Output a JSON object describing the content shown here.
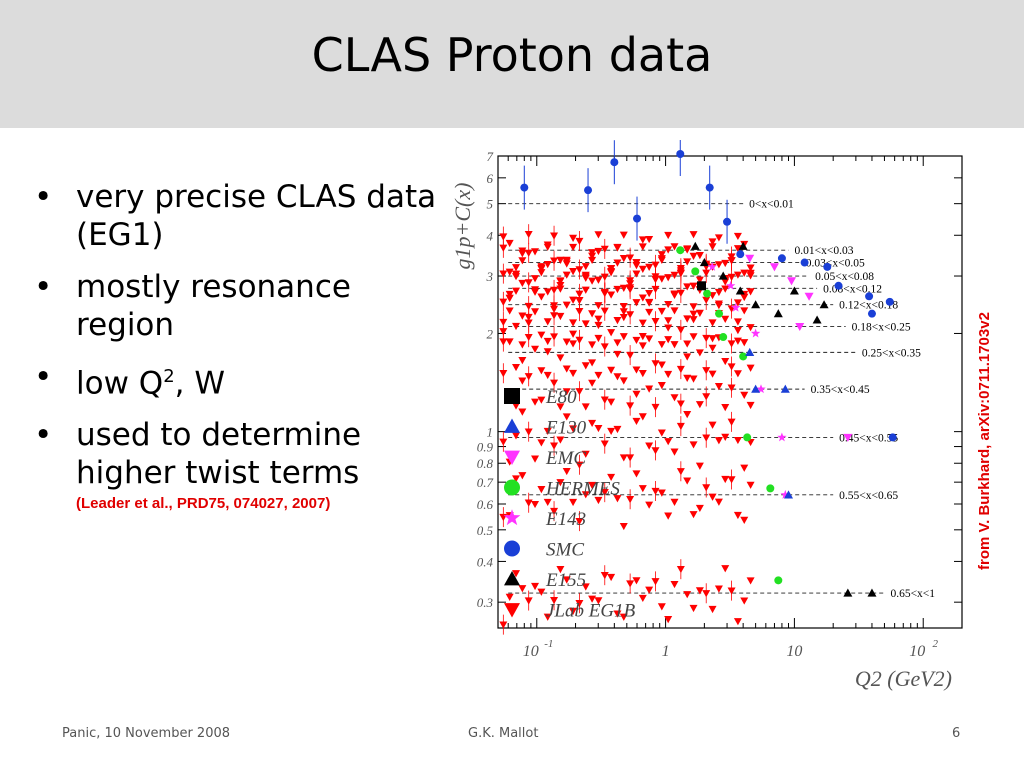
{
  "slide": {
    "title": "CLAS Proton data",
    "bullets": [
      {
        "text": "very precise CLAS data (EG1)"
      },
      {
        "text": "mostly resonance region"
      },
      {
        "text_before": "low Q",
        "sup": "2",
        "text_after": ", W"
      },
      {
        "text": "used to determine higher twist terms",
        "ref": "(Leader et al., PRD75, 074027, 2007)"
      }
    ],
    "credit": "from V. Burkhard, arXiv:0711.1703v2",
    "footer": {
      "left": "Panic, 10 November 2008",
      "center": "G.K. Mallot",
      "right": "6"
    }
  },
  "chart_data": {
    "type": "scatter",
    "xscale": "log",
    "yscale": "log",
    "xlim": [
      0.05,
      200
    ],
    "ylim": [
      0.25,
      7
    ],
    "ylabel": "g1p+C(x)",
    "xlabel": "Q2 (GeV2)",
    "x_tick_labels": [
      "10-1",
      "1",
      "10",
      "102"
    ],
    "y_tick_labels": [
      "0.3",
      "0.4",
      "0.5",
      "0.6",
      "0.7",
      "0.8",
      "0.9",
      "1",
      "2",
      "3",
      "4",
      "5",
      "6",
      "7"
    ],
    "legend": {
      "placement": "left-middle",
      "entries": [
        {
          "name": "E80",
          "marker": "square",
          "color": "#000000"
        },
        {
          "name": "E130",
          "marker": "triangle-up",
          "color": "#1a3fd6"
        },
        {
          "name": "EMC",
          "marker": "triangle-down",
          "color": "#ff33ff"
        },
        {
          "name": "HERMES",
          "marker": "circle",
          "color": "#22e022"
        },
        {
          "name": "E143",
          "marker": "star",
          "color": "#ff33ff"
        },
        {
          "name": "SMC",
          "marker": "circle",
          "color": "#1a3fd6"
        },
        {
          "name": "E155",
          "marker": "triangle-up",
          "color": "#000000"
        },
        {
          "name": "JLab EG1B",
          "marker": "triangle-down",
          "color": "#ff0000"
        }
      ]
    },
    "bins": [
      {
        "label": "0<x<0.01",
        "level": 5.0,
        "x_end": 4
      },
      {
        "label": "0.01<x<0.03",
        "level": 3.6,
        "x_end": 9
      },
      {
        "label": "0.03<x<0.05",
        "level": 3.3,
        "x_end": 11
      },
      {
        "label": "0.05<x<0.08",
        "level": 3.0,
        "x_end": 13
      },
      {
        "label": "0.08<x<0.12",
        "level": 2.75,
        "x_end": 15
      },
      {
        "label": "0.12<x<0.18",
        "level": 2.45,
        "x_end": 20
      },
      {
        "label": "0.18<x<0.25",
        "level": 2.1,
        "x_end": 25
      },
      {
        "label": "0.25<x<0.35",
        "level": 1.75,
        "x_end": 30
      },
      {
        "label": "0.35<x<0.45",
        "level": 1.35,
        "x_end": 12
      },
      {
        "label": "0.45<x<0.55",
        "level": 0.96,
        "x_end": 20
      },
      {
        "label": "0.55<x<0.65",
        "level": 0.64,
        "x_end": 20
      },
      {
        "label": "0.65<x<1",
        "level": 0.32,
        "x_end": 50
      }
    ],
    "series": [
      {
        "name": "SMC",
        "points": [
          [
            0.08,
            5.6
          ],
          [
            0.25,
            5.5
          ],
          [
            0.4,
            6.7
          ],
          [
            0.6,
            4.5
          ],
          [
            1.3,
            7.1
          ],
          [
            2.2,
            5.6
          ],
          [
            3.0,
            4.4
          ],
          [
            3.8,
            3.5
          ],
          [
            8.0,
            3.4
          ],
          [
            12.0,
            3.3
          ],
          [
            18.0,
            3.2
          ],
          [
            22.0,
            2.8
          ],
          [
            38.0,
            2.6
          ],
          [
            55.0,
            2.5
          ],
          [
            40.0,
            2.3
          ],
          [
            58.0,
            0.96
          ]
        ]
      },
      {
        "name": "E155",
        "points": [
          [
            1.7,
            3.7
          ],
          [
            2.0,
            3.3
          ],
          [
            2.8,
            3.0
          ],
          [
            4.0,
            3.7
          ],
          [
            3.8,
            2.7
          ],
          [
            5.0,
            2.45
          ],
          [
            7.5,
            2.3
          ],
          [
            10.0,
            2.7
          ],
          [
            17.0,
            2.45
          ],
          [
            15.0,
            2.2
          ],
          [
            26.0,
            0.32
          ],
          [
            40.0,
            0.32
          ]
        ]
      },
      {
        "name": "E143",
        "points": [
          [
            2.3,
            3.2
          ],
          [
            3.2,
            2.8
          ],
          [
            3.5,
            2.4
          ],
          [
            5.0,
            2.0
          ],
          [
            5.5,
            1.35
          ],
          [
            8.0,
            0.96
          ],
          [
            8.5,
            0.64
          ]
        ]
      },
      {
        "name": "EMC",
        "points": [
          [
            4.5,
            3.4
          ],
          [
            7.0,
            3.2
          ],
          [
            9.5,
            2.9
          ],
          [
            13.0,
            2.6
          ],
          [
            11.0,
            2.1
          ],
          [
            26.0,
            0.96
          ]
        ]
      },
      {
        "name": "HERMES",
        "points": [
          [
            1.3,
            3.6
          ],
          [
            1.7,
            3.1
          ],
          [
            2.1,
            2.65
          ],
          [
            2.6,
            2.3
          ],
          [
            2.8,
            1.95
          ],
          [
            4.0,
            1.7
          ],
          [
            4.3,
            0.96
          ],
          [
            6.5,
            0.67
          ],
          [
            7.5,
            0.35
          ]
        ]
      },
      {
        "name": "E130",
        "points": [
          [
            4.5,
            1.75
          ],
          [
            5.0,
            1.35
          ],
          [
            8.5,
            1.35
          ],
          [
            9.0,
            0.64
          ]
        ]
      },
      {
        "name": "E80",
        "points": [
          [
            1.9,
            2.8
          ]
        ]
      }
    ]
  }
}
